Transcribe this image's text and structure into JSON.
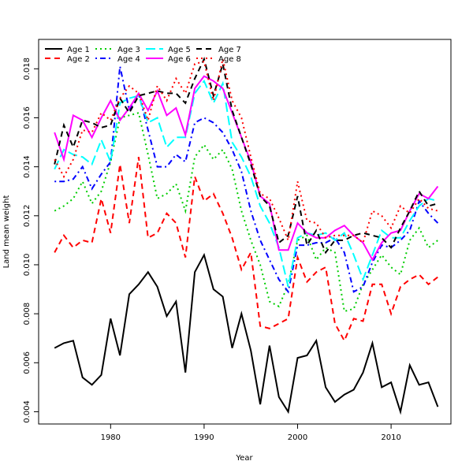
{
  "chart_data": {
    "type": "line",
    "title": "",
    "xlabel": "Year",
    "ylabel": "Land mean weight",
    "xlim": [
      1972.3,
      2016.4
    ],
    "ylim": [
      0.0035,
      0.0192
    ],
    "xticks": [
      1980,
      1990,
      2000,
      2010
    ],
    "yticks": [
      0.004,
      0.006,
      0.008,
      0.01,
      0.012,
      0.014,
      0.016,
      0.018
    ],
    "ytick_labels": [
      "0.004",
      "0.006",
      "0.008",
      "0.010",
      "0.012",
      "0.014",
      "0.016",
      "0.018"
    ],
    "grid": false,
    "legend_position": "top-left",
    "x": [
      1974,
      1975,
      1976,
      1977,
      1978,
      1979,
      1980,
      1981,
      1982,
      1983,
      1984,
      1985,
      1986,
      1987,
      1988,
      1989,
      1990,
      1991,
      1992,
      1993,
      1994,
      1995,
      1996,
      1997,
      1998,
      1999,
      2000,
      2001,
      2002,
      2003,
      2004,
      2005,
      2006,
      2007,
      2008,
      2009,
      2010,
      2011,
      2012,
      2013,
      2014,
      2015
    ],
    "series": [
      {
        "name": "Age 1",
        "color": "#000000",
        "dash": "solid",
        "values": [
          0.0066,
          0.0068,
          0.0069,
          0.0054,
          0.0051,
          0.0055,
          0.0078,
          0.0063,
          0.0088,
          0.0092,
          0.0097,
          0.0091,
          0.0079,
          0.0085,
          0.0056,
          0.0097,
          0.0104,
          0.009,
          0.0087,
          0.0066,
          0.008,
          0.0065,
          0.0043,
          0.0067,
          0.0046,
          0.004,
          0.0062,
          0.0063,
          0.0069,
          0.005,
          0.0044,
          0.0047,
          0.0049,
          0.0056,
          0.0068,
          0.005,
          0.0052,
          0.004,
          0.0059,
          0.0051,
          0.0052,
          0.0042
        ]
      },
      {
        "name": "Age 2",
        "color": "#ff0000",
        "dash": "dashed",
        "values": [
          0.0105,
          0.0112,
          0.0107,
          0.011,
          0.0109,
          0.0127,
          0.0113,
          0.0141,
          0.0117,
          0.0144,
          0.0111,
          0.0113,
          0.0121,
          0.0117,
          0.0103,
          0.0136,
          0.0126,
          0.0129,
          0.0121,
          0.0111,
          0.0098,
          0.0105,
          0.0075,
          0.0074,
          0.0076,
          0.0078,
          0.0103,
          0.0093,
          0.0097,
          0.0099,
          0.0076,
          0.0069,
          0.0078,
          0.0077,
          0.0092,
          0.0092,
          0.008,
          0.0091,
          0.0094,
          0.0096,
          0.0092,
          0.0095
        ]
      },
      {
        "name": "Age 3",
        "color": "#00cd00",
        "dash": "dotted",
        "values": [
          0.0122,
          0.0124,
          0.0127,
          0.0134,
          0.0125,
          0.013,
          0.0142,
          0.016,
          0.0161,
          0.0162,
          0.0145,
          0.0127,
          0.0129,
          0.0133,
          0.0122,
          0.0144,
          0.0149,
          0.0143,
          0.0147,
          0.0139,
          0.0122,
          0.011,
          0.01,
          0.0085,
          0.0083,
          0.0092,
          0.011,
          0.0112,
          0.0102,
          0.0107,
          0.0105,
          0.0081,
          0.0082,
          0.0092,
          0.0098,
          0.0104,
          0.0099,
          0.0096,
          0.011,
          0.0115,
          0.0107,
          0.011
        ]
      },
      {
        "name": "Age 4",
        "color": "#0000ff",
        "dash": "dotdash",
        "values": [
          0.0134,
          0.0134,
          0.0135,
          0.014,
          0.0131,
          0.0137,
          0.0142,
          0.0181,
          0.0163,
          0.017,
          0.0155,
          0.014,
          0.014,
          0.0145,
          0.0142,
          0.0158,
          0.016,
          0.0158,
          0.0154,
          0.0147,
          0.0138,
          0.0122,
          0.011,
          0.0102,
          0.0094,
          0.0089,
          0.0108,
          0.0108,
          0.0109,
          0.0109,
          0.0111,
          0.0105,
          0.0089,
          0.0091,
          0.0101,
          0.0108,
          0.0107,
          0.011,
          0.0114,
          0.0126,
          0.0121,
          0.0117
        ]
      },
      {
        "name": "Age 5",
        "color": "#00ffff",
        "dash": "longdash",
        "values": [
          0.0139,
          0.0147,
          0.0145,
          0.0144,
          0.0141,
          0.0151,
          0.0142,
          0.0166,
          0.0168,
          0.0169,
          0.0158,
          0.016,
          0.0148,
          0.0152,
          0.0152,
          0.017,
          0.0175,
          0.0166,
          0.0174,
          0.015,
          0.0144,
          0.0136,
          0.0124,
          0.0117,
          0.0107,
          0.0091,
          0.0111,
          0.0113,
          0.0112,
          0.0113,
          0.011,
          0.0113,
          0.0104,
          0.0094,
          0.0104,
          0.0114,
          0.0111,
          0.0111,
          0.0118,
          0.0124,
          0.0127,
          0.0126
        ]
      },
      {
        "name": "Age 6",
        "color": "#ff00ff",
        "dash": "solid",
        "values": [
          0.0154,
          0.0143,
          0.0161,
          0.0159,
          0.0152,
          0.016,
          0.0167,
          0.0159,
          0.0164,
          0.017,
          0.0163,
          0.0171,
          0.0161,
          0.0164,
          0.0153,
          0.0172,
          0.0177,
          0.0175,
          0.0172,
          0.0162,
          0.0152,
          0.0142,
          0.0128,
          0.0125,
          0.0106,
          0.0106,
          0.0117,
          0.0113,
          0.0111,
          0.0111,
          0.0114,
          0.0116,
          0.0112,
          0.0109,
          0.0102,
          0.0109,
          0.0113,
          0.0114,
          0.0122,
          0.0129,
          0.0127,
          0.0132
        ]
      },
      {
        "name": "Age 7",
        "color": "#000000",
        "dash": "dashed",
        "values": [
          0.0141,
          0.0157,
          0.0148,
          0.0159,
          0.0158,
          0.0156,
          0.0157,
          0.0168,
          0.0162,
          0.0169,
          0.017,
          0.0171,
          0.017,
          0.017,
          0.0166,
          0.0176,
          0.0184,
          0.0169,
          0.0182,
          0.0163,
          0.0152,
          0.0141,
          0.0128,
          0.0124,
          0.0109,
          0.0112,
          0.0128,
          0.0108,
          0.0114,
          0.0105,
          0.011,
          0.011,
          0.0112,
          0.0113,
          0.0112,
          0.0111,
          0.0107,
          0.0115,
          0.0122,
          0.013,
          0.0124,
          0.0125
        ]
      },
      {
        "name": "Age 8",
        "color": "#ff0000",
        "dash": "dotted",
        "values": [
          0.0143,
          0.0136,
          0.0143,
          0.0155,
          0.0154,
          0.0162,
          0.0159,
          0.0168,
          0.0173,
          0.017,
          0.0159,
          0.0173,
          0.0167,
          0.0176,
          0.017,
          0.0182,
          0.0183,
          0.0167,
          0.0184,
          0.0167,
          0.016,
          0.0144,
          0.0129,
          0.0127,
          0.0119,
          0.011,
          0.0134,
          0.0118,
          0.0117,
          0.0111,
          0.0112,
          0.0112,
          0.0112,
          0.0109,
          0.0122,
          0.012,
          0.0115,
          0.0124,
          0.0121,
          0.0127,
          0.0123,
          0.0122
        ]
      }
    ]
  }
}
